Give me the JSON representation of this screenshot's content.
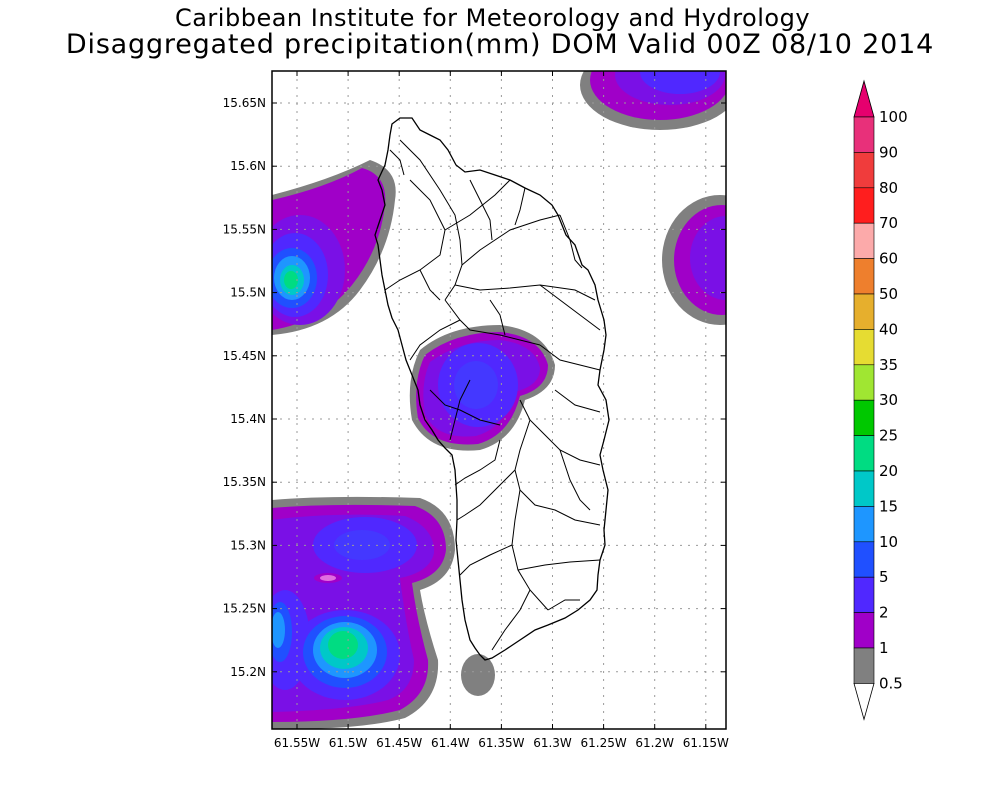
{
  "header": {
    "title": "Caribbean Institute for Meteorology and Hydrology",
    "subtitle": "Disaggregated precipitation(mm) DOM Valid 00Z 08/10 2014"
  },
  "map": {
    "lat_ticks": [
      "15.65N",
      "15.6N",
      "15.55N",
      "15.5N",
      "15.45N",
      "15.4N",
      "15.35N",
      "15.3N",
      "15.25N",
      "15.2N"
    ],
    "lon_ticks": [
      "61.55W",
      "61.5W",
      "61.45W",
      "61.4W",
      "61.35W",
      "61.3W",
      "61.25W",
      "61.2W",
      "61.15W"
    ]
  },
  "colorbar": {
    "levels": [
      {
        "label": "100",
        "color": "#e8307a"
      },
      {
        "label": "90",
        "color": "#f03c3c"
      },
      {
        "label": "80",
        "color": "#ff1e1e"
      },
      {
        "label": "70",
        "color": "#fcaaaa"
      },
      {
        "label": "60",
        "color": "#ee7f2d"
      },
      {
        "label": "50",
        "color": "#e6af2d"
      },
      {
        "label": "40",
        "color": "#e6dc32"
      },
      {
        "label": "35",
        "color": "#a0e632"
      },
      {
        "label": "30",
        "color": "#00c800"
      },
      {
        "label": "25",
        "color": "#00dc82"
      },
      {
        "label": "20",
        "color": "#00c8c8"
      },
      {
        "label": "15",
        "color": "#1e96ff"
      },
      {
        "label": "10",
        "color": "#2050ff"
      },
      {
        "label": "5",
        "color": "#5028ff"
      },
      {
        "label": "2",
        "color": "#7a10e6"
      },
      {
        "label": "1",
        "color": "#a000c8"
      },
      {
        "label": "0.5",
        "color": "#808080"
      }
    ],
    "top_arrow_color": "#e6006e",
    "bottom_arrow_color": "#ffffff"
  }
}
